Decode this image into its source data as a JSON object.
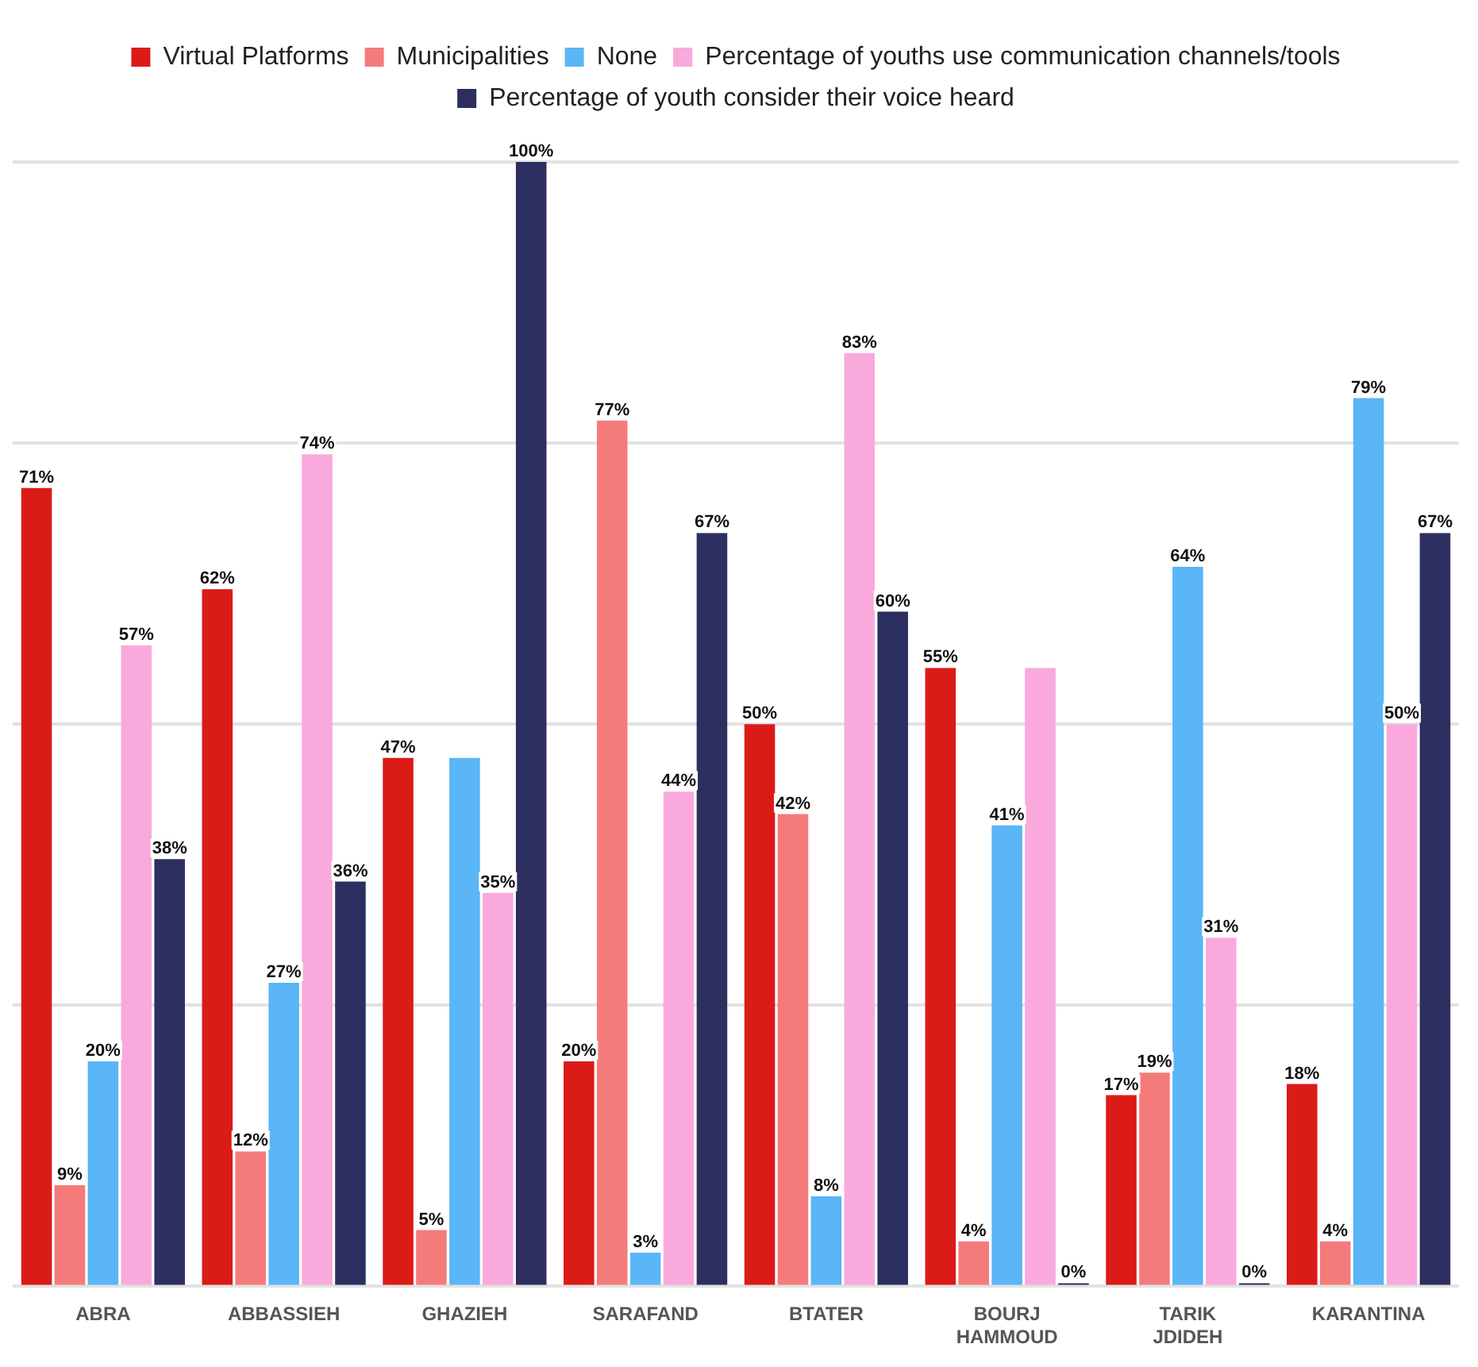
{
  "chart_data": {
    "type": "bar",
    "categories": [
      "ABRA",
      "ABBASSIEH",
      "GHAZIEH",
      "SARAFAND",
      "BTATER",
      "BOURJ HAMMOUD",
      "TARIK JDIDEH",
      "KARANTINA"
    ],
    "series": [
      {
        "name": "Virtual Platforms",
        "color": "#db1b17",
        "values": [
          71,
          62,
          47,
          20,
          50,
          55,
          17,
          18
        ],
        "value_labels": [
          "71%",
          "62%",
          "47%",
          "20%",
          "50%",
          "55%",
          "17%",
          "18%"
        ]
      },
      {
        "name": "Municipalities",
        "color": "#f57b7b",
        "values": [
          9,
          12,
          5,
          77,
          42,
          4,
          19,
          4
        ],
        "value_labels": [
          "9%",
          "12%",
          "5%",
          "77%",
          "42%",
          "4%",
          "19%",
          "4%"
        ]
      },
      {
        "name": "None",
        "color": "#5ab6f6",
        "values": [
          20,
          27,
          47,
          3,
          8,
          41,
          64,
          79
        ],
        "value_labels": [
          "20%",
          "27%",
          null,
          "3%",
          "8%",
          "41%",
          "64%",
          "79%"
        ]
      },
      {
        "name": "Percentage of youths use communication channels/tools",
        "color": "#f9a9dc",
        "values": [
          57,
          74,
          35,
          44,
          83,
          55,
          31,
          50
        ],
        "value_labels": [
          "57%",
          "74%",
          "35%",
          "44%",
          "83%",
          null,
          "31%",
          "50%"
        ]
      },
      {
        "name": "Percentage of youth consider their voice heard",
        "color": "#2c2f5f",
        "values": [
          38,
          36,
          100,
          67,
          60,
          0,
          0,
          67
        ],
        "value_labels": [
          "38%",
          "36%",
          "100%",
          "67%",
          "60%",
          "0%",
          "0%",
          "67%"
        ]
      }
    ],
    "ylim": [
      0,
      100
    ],
    "yticks": [
      {
        "value": 0,
        "label": null
      },
      {
        "value": 25,
        "label": null
      },
      {
        "value": 50,
        "label": null
      },
      {
        "value": 75,
        "label": null
      },
      {
        "value": 100,
        "label": null
      }
    ],
    "grid": "y",
    "tick_labels": "x",
    "legend": "top"
  }
}
